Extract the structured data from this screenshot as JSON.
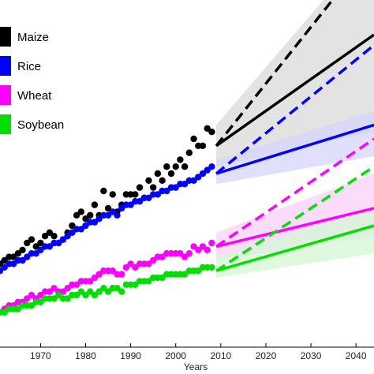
{
  "chart_data": {
    "type": "scatter",
    "title": "",
    "xlabel": "Years",
    "ylabel": "",
    "xlim": [
      1961,
      2044
    ],
    "ylim": [
      0,
      100
    ],
    "xticks": [
      1970,
      1980,
      1990,
      2000,
      2010,
      2020,
      2030,
      2040
    ],
    "grid": false,
    "legend_position": "top-left",
    "series": [
      {
        "name": "Maize",
        "color": "#000000",
        "observed": {
          "x": [
            1961,
            1962,
            1963,
            1964,
            1965,
            1966,
            1967,
            1968,
            1969,
            1970,
            1971,
            1972,
            1973,
            1974,
            1975,
            1976,
            1977,
            1978,
            1979,
            1980,
            1981,
            1982,
            1983,
            1984,
            1985,
            1986,
            1987,
            1988,
            1989,
            1990,
            1991,
            1992,
            1993,
            1994,
            1995,
            1996,
            1997,
            1998,
            1999,
            2000,
            2001,
            2002,
            2003,
            2004,
            2005,
            2006,
            2007,
            2008
          ],
          "y": [
            24,
            25,
            26,
            26,
            27,
            28,
            30,
            31,
            29,
            30,
            32,
            33,
            32,
            30,
            31,
            33,
            35,
            38,
            39,
            37,
            38,
            41,
            38,
            45,
            40,
            44,
            39,
            41,
            44,
            44,
            44,
            46,
            43,
            48,
            46,
            50,
            48,
            52,
            50,
            52,
            54,
            52,
            56,
            60,
            58,
            58,
            63,
            62
          ]
        },
        "projection_solid": {
          "x": [
            2009,
            2044
          ],
          "y": [
            58,
            90
          ]
        },
        "projection_dashed": {
          "x": [
            2009,
            2044
          ],
          "y": [
            58,
            115
          ]
        },
        "band": {
          "x": [
            2009,
            2044
          ],
          "lower": [
            52,
            62
          ],
          "upper": [
            64,
            117
          ]
        }
      },
      {
        "name": "Rice",
        "color": "#0000ff",
        "observed": {
          "x": [
            1961,
            1962,
            1963,
            1964,
            1965,
            1966,
            1967,
            1968,
            1969,
            1970,
            1971,
            1972,
            1973,
            1974,
            1975,
            1976,
            1977,
            1978,
            1979,
            1980,
            1981,
            1982,
            1983,
            1984,
            1985,
            1986,
            1987,
            1988,
            1989,
            1990,
            1991,
            1992,
            1993,
            1994,
            1995,
            1996,
            1997,
            1998,
            1999,
            2000,
            2001,
            2002,
            2003,
            2004,
            2005,
            2006,
            2007,
            2008
          ],
          "y": [
            22,
            23,
            24,
            24,
            25,
            25,
            26,
            27,
            27,
            28,
            29,
            29,
            30,
            30,
            31,
            32,
            33,
            34,
            34,
            35,
            36,
            36,
            37,
            38,
            38,
            39,
            38,
            40,
            41,
            41,
            42,
            42,
            43,
            43,
            44,
            44,
            45,
            45,
            46,
            46,
            47,
            47,
            48,
            48,
            49,
            50,
            51,
            52
          ]
        },
        "projection_solid": {
          "x": [
            2009,
            2044
          ],
          "y": [
            50,
            64
          ]
        },
        "projection_dashed": {
          "x": [
            2009,
            2044
          ],
          "y": [
            50,
            87
          ]
        },
        "band": {
          "x": [
            2009,
            2044
          ],
          "lower": [
            47,
            55
          ],
          "upper": [
            54,
            68
          ]
        }
      },
      {
        "name": "Wheat",
        "color": "#ff00ff",
        "observed": {
          "x": [
            1961,
            1962,
            1963,
            1964,
            1965,
            1966,
            1967,
            1968,
            1969,
            1970,
            1971,
            1972,
            1973,
            1974,
            1975,
            1976,
            1977,
            1978,
            1979,
            1980,
            1981,
            1982,
            1983,
            1984,
            1985,
            1986,
            1987,
            1988,
            1989,
            1990,
            1991,
            1992,
            1993,
            1994,
            1995,
            1996,
            1997,
            1998,
            1999,
            2000,
            2001,
            2002,
            2003,
            2004,
            2005,
            2006,
            2007,
            2008
          ],
          "y": [
            10,
            11,
            12,
            12,
            13,
            13,
            14,
            15,
            14,
            15,
            16,
            16,
            17,
            16,
            16,
            17,
            18,
            18,
            19,
            19,
            19,
            20,
            21,
            22,
            22,
            22,
            21,
            21,
            23,
            24,
            23,
            24,
            24,
            24,
            25,
            26,
            26,
            27,
            27,
            27,
            27,
            26,
            27,
            29,
            28,
            29,
            28,
            30
          ]
        },
        "projection_solid": {
          "x": [
            2009,
            2044
          ],
          "y": [
            29,
            40
          ]
        },
        "projection_dashed": {
          "x": [
            2009,
            2044
          ],
          "y": [
            29,
            60
          ]
        },
        "band": {
          "x": [
            2009,
            2044
          ],
          "lower": [
            25,
            32
          ],
          "upper": [
            33,
            50
          ]
        }
      },
      {
        "name": "Soybean",
        "color": "#00dd00",
        "observed": {
          "x": [
            1961,
            1962,
            1963,
            1964,
            1965,
            1966,
            1967,
            1968,
            1969,
            1970,
            1971,
            1972,
            1973,
            1974,
            1975,
            1976,
            1977,
            1978,
            1979,
            1980,
            1981,
            1982,
            1983,
            1984,
            1985,
            1986,
            1987,
            1988,
            1989,
            1990,
            1991,
            1992,
            1993,
            1994,
            1995,
            1996,
            1997,
            1998,
            1999,
            2000,
            2001,
            2002,
            2003,
            2004,
            2005,
            2006,
            2007,
            2008
          ],
          "y": [
            10,
            10,
            11,
            11,
            11,
            12,
            12,
            12,
            13,
            13,
            14,
            14,
            14,
            15,
            14,
            14,
            15,
            15,
            16,
            15,
            16,
            15,
            16,
            17,
            16,
            17,
            17,
            16,
            18,
            18,
            18,
            19,
            19,
            19,
            20,
            20,
            20,
            21,
            21,
            21,
            21,
            21,
            22,
            22,
            22,
            23,
            23,
            23
          ]
        },
        "projection_solid": {
          "x": [
            2009,
            2044
          ],
          "y": [
            22,
            35
          ]
        },
        "projection_dashed": {
          "x": [
            2009,
            2044
          ],
          "y": [
            22,
            52
          ]
        },
        "band": {
          "x": [
            2009,
            2044
          ],
          "lower": [
            20,
            27
          ],
          "upper": [
            26,
            40
          ]
        }
      }
    ]
  }
}
